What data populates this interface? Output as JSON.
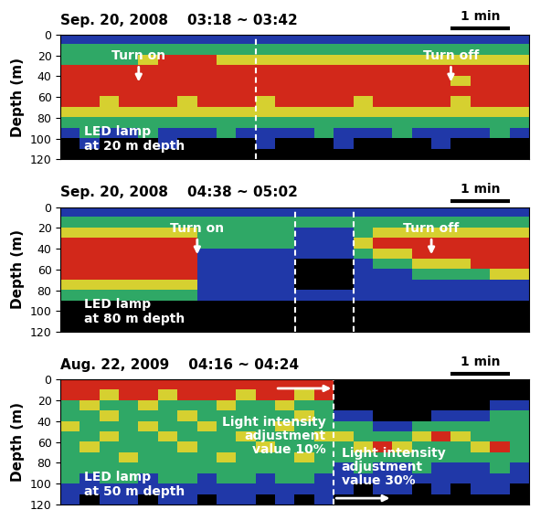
{
  "chart_data": [
    {
      "type": "heatmap",
      "title": "Sep. 20, 2008    03:18 ~ 03:42",
      "y_label": "Depth (m)",
      "ylim": [
        120,
        0
      ],
      "yticks": [
        0,
        20,
        40,
        60,
        80,
        100,
        120
      ],
      "tick_labels": "y",
      "colors": [
        "#000000",
        "#2038a8",
        "#2fa866",
        "#d6d030",
        "#d2281a"
      ],
      "scale_bar": {
        "label": "1 min",
        "length": 3
      },
      "breaks": [
        10
      ],
      "events": [
        {
          "text": "Turn on",
          "at": 4
        },
        {
          "text": "Turn off",
          "at": 20
        }
      ],
      "notes": [
        "LED lamp\nat 20 m depth"
      ],
      "cells": [
        [
          1,
          1,
          1,
          1,
          1,
          1,
          1,
          1,
          1,
          1,
          1,
          1,
          1,
          1,
          1,
          1,
          1,
          1,
          1,
          1,
          1,
          1,
          1,
          1
        ],
        [
          2,
          2,
          2,
          2,
          2,
          2,
          2,
          2,
          2,
          2,
          2,
          2,
          2,
          2,
          2,
          2,
          2,
          2,
          2,
          2,
          2,
          2,
          2,
          2
        ],
        [
          2,
          2,
          2,
          2,
          3,
          4,
          4,
          4,
          3,
          3,
          3,
          3,
          3,
          3,
          3,
          3,
          3,
          3,
          3,
          3,
          3,
          3,
          3,
          3
        ],
        [
          4,
          4,
          4,
          4,
          4,
          4,
          4,
          4,
          4,
          4,
          4,
          4,
          4,
          4,
          4,
          4,
          4,
          4,
          4,
          4,
          4,
          4,
          4,
          4
        ],
        [
          4,
          4,
          4,
          4,
          4,
          4,
          4,
          4,
          4,
          4,
          4,
          4,
          4,
          4,
          4,
          4,
          4,
          4,
          4,
          4,
          3,
          4,
          4,
          4
        ],
        [
          4,
          4,
          4,
          4,
          4,
          4,
          4,
          4,
          4,
          4,
          4,
          4,
          4,
          4,
          4,
          4,
          4,
          4,
          4,
          4,
          4,
          4,
          4,
          4
        ],
        [
          4,
          4,
          3,
          4,
          4,
          4,
          3,
          4,
          4,
          4,
          3,
          4,
          4,
          4,
          4,
          3,
          4,
          4,
          4,
          4,
          3,
          4,
          4,
          4
        ],
        [
          3,
          3,
          3,
          3,
          3,
          3,
          3,
          3,
          3,
          3,
          3,
          3,
          3,
          3,
          3,
          3,
          3,
          3,
          3,
          3,
          3,
          3,
          3,
          3
        ],
        [
          2,
          2,
          2,
          2,
          2,
          2,
          2,
          2,
          2,
          2,
          2,
          2,
          2,
          2,
          2,
          2,
          2,
          2,
          2,
          2,
          2,
          2,
          2,
          2
        ],
        [
          1,
          2,
          1,
          1,
          2,
          1,
          1,
          1,
          2,
          1,
          1,
          1,
          1,
          2,
          1,
          1,
          1,
          2,
          1,
          1,
          1,
          1,
          2,
          1
        ],
        [
          0,
          1,
          0,
          0,
          0,
          1,
          0,
          0,
          0,
          0,
          1,
          0,
          0,
          0,
          1,
          0,
          0,
          0,
          0,
          1,
          0,
          0,
          0,
          0
        ],
        [
          0,
          0,
          0,
          0,
          0,
          0,
          0,
          0,
          0,
          0,
          0,
          0,
          0,
          0,
          0,
          0,
          0,
          0,
          0,
          0,
          0,
          0,
          0,
          0
        ]
      ]
    },
    {
      "type": "heatmap",
      "title": "Sep. 20, 2008    04:38 ~ 05:02",
      "y_label": "Depth (m)",
      "ylim": [
        120,
        0
      ],
      "yticks": [
        0,
        20,
        40,
        60,
        80,
        100,
        120
      ],
      "tick_labels": "y",
      "colors": [
        "#000000",
        "#2038a8",
        "#2fa866",
        "#d6d030",
        "#d2281a"
      ],
      "scale_bar": {
        "label": "1 min",
        "length": 3
      },
      "breaks": [
        12,
        15
      ],
      "events": [
        {
          "text": "Turn on",
          "at": 7
        },
        {
          "text": "Turn off",
          "at": 19
        }
      ],
      "notes": [
        "LED lamp\nat 80 m depth"
      ],
      "cells": [
        [
          1,
          1,
          1,
          1,
          1,
          1,
          1,
          1,
          1,
          1,
          1,
          1,
          1,
          1,
          1,
          1,
          1,
          1,
          1,
          1,
          1,
          1,
          1,
          1
        ],
        [
          2,
          2,
          2,
          2,
          2,
          2,
          2,
          2,
          2,
          2,
          2,
          2,
          2,
          2,
          2,
          2,
          2,
          2,
          2,
          2,
          2,
          2,
          2,
          2
        ],
        [
          3,
          3,
          3,
          3,
          3,
          3,
          3,
          2,
          2,
          2,
          2,
          2,
          1,
          1,
          1,
          2,
          3,
          3,
          3,
          3,
          3,
          3,
          3,
          3
        ],
        [
          4,
          4,
          4,
          4,
          4,
          4,
          4,
          2,
          2,
          2,
          2,
          2,
          1,
          1,
          1,
          3,
          4,
          4,
          4,
          4,
          4,
          4,
          4,
          4
        ],
        [
          4,
          4,
          4,
          4,
          4,
          4,
          4,
          1,
          1,
          1,
          1,
          1,
          1,
          1,
          1,
          2,
          3,
          3,
          4,
          4,
          4,
          4,
          4,
          4
        ],
        [
          4,
          4,
          4,
          4,
          4,
          4,
          4,
          1,
          1,
          1,
          1,
          1,
          0,
          0,
          0,
          1,
          2,
          2,
          3,
          3,
          3,
          4,
          4,
          4
        ],
        [
          4,
          4,
          4,
          4,
          4,
          4,
          4,
          1,
          1,
          1,
          1,
          1,
          0,
          0,
          0,
          1,
          1,
          1,
          2,
          2,
          2,
          2,
          3,
          3
        ],
        [
          3,
          3,
          3,
          3,
          3,
          3,
          3,
          1,
          1,
          1,
          1,
          1,
          0,
          0,
          0,
          1,
          1,
          1,
          1,
          1,
          1,
          1,
          1,
          1
        ],
        [
          2,
          2,
          2,
          2,
          2,
          2,
          2,
          1,
          1,
          1,
          1,
          1,
          1,
          1,
          1,
          1,
          1,
          1,
          1,
          1,
          1,
          1,
          1,
          1
        ],
        [
          0,
          0,
          0,
          0,
          0,
          0,
          0,
          0,
          0,
          0,
          0,
          0,
          0,
          0,
          0,
          0,
          0,
          0,
          0,
          0,
          0,
          0,
          0,
          0
        ],
        [
          0,
          0,
          0,
          0,
          0,
          0,
          0,
          0,
          0,
          0,
          0,
          0,
          0,
          0,
          0,
          0,
          0,
          0,
          0,
          0,
          0,
          0,
          0,
          0
        ],
        [
          0,
          0,
          0,
          0,
          0,
          0,
          0,
          0,
          0,
          0,
          0,
          0,
          0,
          0,
          0,
          0,
          0,
          0,
          0,
          0,
          0,
          0,
          0,
          0
        ]
      ]
    },
    {
      "type": "heatmap",
      "title": "Aug. 22, 2009    04:16 ~ 04:24",
      "y_label": "Depth (m)",
      "ylim": [
        120,
        0
      ],
      "yticks": [
        0,
        20,
        40,
        60,
        80,
        100,
        120
      ],
      "tick_labels": "y",
      "colors": [
        "#000000",
        "#2038a8",
        "#2fa866",
        "#d6d030",
        "#d2281a"
      ],
      "scale_bar": {
        "label": "1 min",
        "length": 3
      },
      "breaks": [
        14
      ],
      "phases": [
        {
          "text": "Light intensity\nadjustment\nvalue 10%",
          "from": 0
        },
        {
          "text": "Light intensity\nadjustment\nvalue 30%",
          "from": 14
        }
      ],
      "notes": [
        "LED lamp\nat 50 m depth"
      ],
      "cells": [
        [
          4,
          4,
          4,
          4,
          4,
          4,
          4,
          4,
          4,
          4,
          4,
          4,
          4,
          4,
          0,
          0,
          0,
          0,
          0,
          0,
          0,
          0,
          0,
          0
        ],
        [
          4,
          4,
          3,
          4,
          4,
          3,
          4,
          4,
          4,
          3,
          4,
          4,
          3,
          4,
          0,
          0,
          0,
          0,
          0,
          0,
          0,
          0,
          0,
          0
        ],
        [
          2,
          3,
          2,
          2,
          3,
          2,
          2,
          2,
          3,
          2,
          2,
          3,
          2,
          2,
          0,
          0,
          0,
          0,
          0,
          0,
          0,
          0,
          1,
          1
        ],
        [
          2,
          2,
          3,
          2,
          2,
          2,
          3,
          2,
          2,
          2,
          2,
          2,
          3,
          2,
          1,
          1,
          0,
          0,
          0,
          1,
          1,
          1,
          2,
          2
        ],
        [
          3,
          2,
          2,
          2,
          3,
          2,
          2,
          3,
          2,
          2,
          2,
          3,
          2,
          2,
          2,
          2,
          1,
          1,
          2,
          2,
          2,
          2,
          2,
          2
        ],
        [
          2,
          2,
          3,
          2,
          2,
          3,
          2,
          2,
          2,
          3,
          2,
          2,
          2,
          3,
          3,
          2,
          2,
          2,
          3,
          4,
          3,
          2,
          2,
          2
        ],
        [
          2,
          3,
          2,
          2,
          2,
          2,
          3,
          2,
          2,
          2,
          3,
          2,
          2,
          2,
          2,
          3,
          4,
          3,
          2,
          2,
          2,
          3,
          4,
          2
        ],
        [
          2,
          2,
          2,
          3,
          2,
          2,
          2,
          2,
          3,
          2,
          2,
          2,
          3,
          2,
          2,
          2,
          2,
          2,
          2,
          2,
          2,
          2,
          2,
          2
        ],
        [
          2,
          2,
          2,
          2,
          2,
          2,
          2,
          2,
          2,
          2,
          2,
          2,
          2,
          2,
          1,
          2,
          1,
          1,
          2,
          1,
          1,
          1,
          2,
          1
        ],
        [
          2,
          1,
          2,
          2,
          1,
          2,
          2,
          1,
          2,
          2,
          1,
          2,
          2,
          1,
          1,
          1,
          1,
          1,
          1,
          1,
          1,
          1,
          1,
          1
        ],
        [
          1,
          1,
          1,
          1,
          1,
          1,
          1,
          1,
          1,
          1,
          1,
          1,
          1,
          1,
          1,
          0,
          1,
          1,
          0,
          1,
          0,
          1,
          1,
          0
        ],
        [
          1,
          0,
          1,
          1,
          0,
          1,
          1,
          0,
          1,
          1,
          0,
          1,
          0,
          1,
          0,
          0,
          0,
          0,
          0,
          0,
          0,
          0,
          0,
          0
        ]
      ]
    }
  ]
}
